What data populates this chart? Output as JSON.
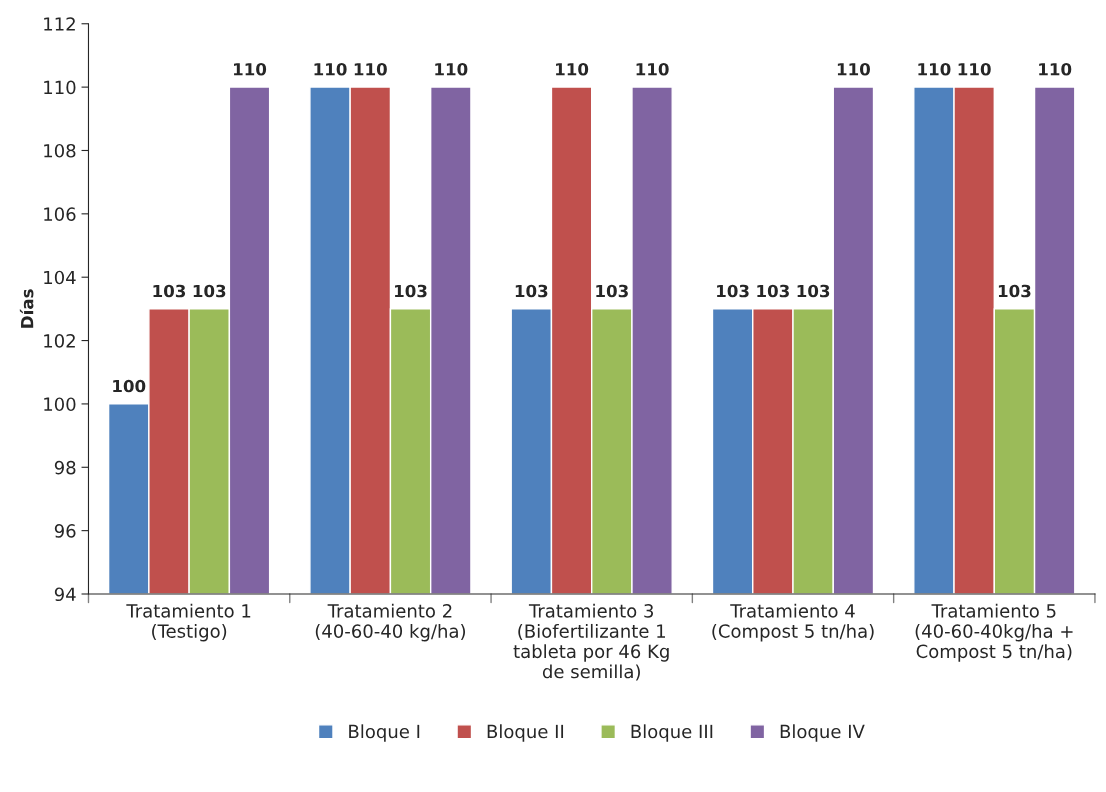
{
  "chart_data": {
    "type": "bar",
    "ylabel": "Días",
    "categories": [
      "Tratamiento 1\n(Testigo)",
      "Tratamiento 2\n(40-60-40 kg/ha)",
      "Tratamiento 3\n(Biofertilizante 1\ntableta por 46 Kg\nde semilla)",
      "Tratamiento 4\n(Compost 5 tn/ha)",
      "Tratamiento 5\n(40-60-40kg/ha +\nCompost 5 tn/ha)"
    ],
    "series": [
      {
        "name": "Bloque I",
        "color": "#4f81bd",
        "values": [
          100,
          110,
          103,
          103,
          110
        ]
      },
      {
        "name": "Bloque II",
        "color": "#c0504d",
        "values": [
          103,
          110,
          110,
          103,
          110
        ]
      },
      {
        "name": "Bloque III",
        "color": "#9bbb59",
        "values": [
          103,
          103,
          103,
          103,
          103
        ]
      },
      {
        "name": "Bloque IV",
        "color": "#8064a2",
        "values": [
          110,
          110,
          110,
          110,
          110
        ]
      }
    ],
    "ylim": [
      94,
      112
    ],
    "yticks": [
      94,
      96,
      98,
      100,
      102,
      104,
      106,
      108,
      110,
      112
    ],
    "data_labels": true,
    "legend": "bottom",
    "grid": false
  }
}
